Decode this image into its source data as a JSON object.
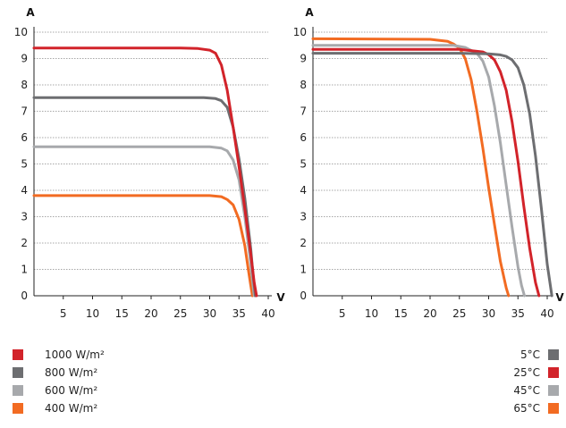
{
  "chart_data": [
    {
      "type": "line",
      "title": "",
      "xlabel": "V",
      "ylabel": "A",
      "xlim": [
        0,
        40
      ],
      "ylim": [
        0,
        10
      ],
      "x_ticks": [
        5,
        10,
        15,
        20,
        25,
        30,
        35,
        40
      ],
      "y_ticks": [
        0,
        1,
        2,
        3,
        4,
        5,
        6,
        7,
        8,
        9,
        10
      ],
      "grid": true,
      "legend_position": "bottom-left",
      "series": [
        {
          "name": "1000 W/m²",
          "color": "#d2232a",
          "x": [
            0,
            25,
            28,
            30,
            31,
            32,
            33,
            34,
            35,
            36,
            37,
            37.6,
            38.0
          ],
          "y": [
            9.4,
            9.4,
            9.38,
            9.32,
            9.2,
            8.75,
            7.8,
            6.4,
            4.9,
            3.3,
            1.6,
            0.5,
            0
          ]
        },
        {
          "name": "800 W/m²",
          "color": "#6d6e71",
          "x": [
            0,
            29,
            31,
            32,
            33,
            34,
            35,
            36,
            37,
            37.4,
            37.8
          ],
          "y": [
            7.52,
            7.52,
            7.48,
            7.4,
            7.15,
            6.4,
            5.2,
            3.7,
            1.8,
            0.8,
            0
          ]
        },
        {
          "name": "600 W/m²",
          "color": "#a7a9ac",
          "x": [
            0,
            30,
            32,
            33,
            34,
            35,
            36,
            36.8,
            37.3,
            37.6
          ],
          "y": [
            5.65,
            5.65,
            5.6,
            5.5,
            5.15,
            4.4,
            3.0,
            1.6,
            0.6,
            0
          ]
        },
        {
          "name": "400 W/m²",
          "color": "#f26b22",
          "x": [
            0,
            30,
            32,
            33,
            34,
            35,
            36,
            36.6,
            37.0,
            37.3
          ],
          "y": [
            3.8,
            3.8,
            3.76,
            3.65,
            3.45,
            2.9,
            1.9,
            1.0,
            0.4,
            0
          ]
        }
      ]
    },
    {
      "type": "line",
      "title": "",
      "xlabel": "V",
      "ylabel": "A",
      "xlim": [
        0,
        40
      ],
      "ylim": [
        0,
        10
      ],
      "x_ticks": [
        5,
        10,
        15,
        20,
        25,
        30,
        35,
        40
      ],
      "y_ticks": [
        0,
        1,
        2,
        3,
        4,
        5,
        6,
        7,
        8,
        9,
        10
      ],
      "grid": true,
      "legend_position": "bottom-right",
      "series": [
        {
          "name": "5°C",
          "color": "#6d6e71",
          "x": [
            0,
            25,
            30,
            32,
            33,
            34,
            35,
            36,
            37,
            38,
            39,
            40,
            40.8
          ],
          "y": [
            9.2,
            9.2,
            9.18,
            9.14,
            9.08,
            8.95,
            8.65,
            8.0,
            6.9,
            5.3,
            3.3,
            1.2,
            0
          ]
        },
        {
          "name": "25°C",
          "color": "#d2232a",
          "x": [
            0,
            25,
            29,
            30,
            31,
            32,
            33,
            34,
            35,
            36,
            37,
            38,
            38.6
          ],
          "y": [
            9.35,
            9.35,
            9.25,
            9.15,
            8.95,
            8.5,
            7.8,
            6.6,
            5.1,
            3.4,
            1.8,
            0.5,
            0
          ]
        },
        {
          "name": "45°C",
          "color": "#a7a9ac",
          "x": [
            0,
            24,
            26,
            28,
            29,
            30,
            31,
            32,
            33,
            34,
            35,
            35.6,
            36.1
          ],
          "y": [
            9.5,
            9.5,
            9.42,
            9.2,
            8.9,
            8.3,
            7.2,
            5.8,
            4.2,
            2.6,
            1.1,
            0.4,
            0
          ]
        },
        {
          "name": "65°C",
          "color": "#f26b22",
          "x": [
            0,
            20,
            23,
            24,
            25,
            26,
            27,
            28,
            29,
            30,
            31,
            32,
            33,
            33.4
          ],
          "y": [
            9.75,
            9.73,
            9.65,
            9.55,
            9.4,
            9.0,
            8.2,
            7.0,
            5.6,
            4.1,
            2.7,
            1.3,
            0.3,
            0
          ]
        }
      ]
    }
  ]
}
